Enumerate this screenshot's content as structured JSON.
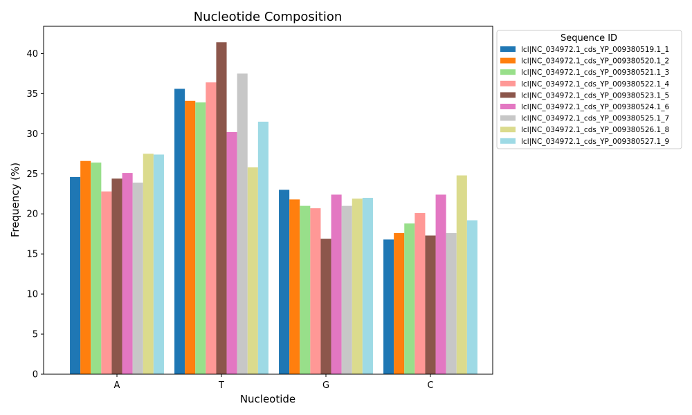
{
  "chart_data": {
    "type": "bar",
    "title": "Nucleotide Composition",
    "xlabel": "Nucleotide",
    "ylabel": "Frequency (%)",
    "ylim": [
      0,
      43.4
    ],
    "yticks": [
      0,
      5,
      10,
      15,
      20,
      25,
      30,
      35,
      40
    ],
    "categories": [
      "A",
      "T",
      "G",
      "C"
    ],
    "legend_title": "Sequence ID",
    "legend_position": "outside-top-right",
    "grid": false,
    "series": [
      {
        "name": "lcl|NC_034972.1_cds_YP_009380519.1_1",
        "color": "#1f77b4",
        "values": [
          24.6,
          35.6,
          23.0,
          16.8
        ]
      },
      {
        "name": "lcl|NC_034972.1_cds_YP_009380520.1_2",
        "color": "#ff7f0e",
        "values": [
          26.6,
          34.1,
          21.8,
          17.6
        ]
      },
      {
        "name": "lcl|NC_034972.1_cds_YP_009380521.1_3",
        "color": "#98df8a",
        "values": [
          26.4,
          33.9,
          21.0,
          18.8
        ]
      },
      {
        "name": "lcl|NC_034972.1_cds_YP_009380522.1_4",
        "color": "#ff9896",
        "values": [
          22.8,
          36.4,
          20.7,
          20.1
        ]
      },
      {
        "name": "lcl|NC_034972.1_cds_YP_009380523.1_5",
        "color": "#8c564b",
        "values": [
          24.4,
          41.4,
          16.9,
          17.3
        ]
      },
      {
        "name": "lcl|NC_034972.1_cds_YP_009380524.1_6",
        "color": "#e377c2",
        "values": [
          25.1,
          30.2,
          22.4,
          22.4
        ]
      },
      {
        "name": "lcl|NC_034972.1_cds_YP_009380525.1_7",
        "color": "#c7c7c7",
        "values": [
          23.9,
          37.5,
          21.0,
          17.6
        ]
      },
      {
        "name": "lcl|NC_034972.1_cds_YP_009380526.1_8",
        "color": "#dbdb8d",
        "values": [
          27.5,
          25.8,
          21.9,
          24.8
        ]
      },
      {
        "name": "lcl|NC_034972.1_cds_YP_009380527.1_9",
        "color": "#9edae5",
        "values": [
          27.4,
          31.5,
          22.0,
          19.2
        ]
      }
    ]
  }
}
